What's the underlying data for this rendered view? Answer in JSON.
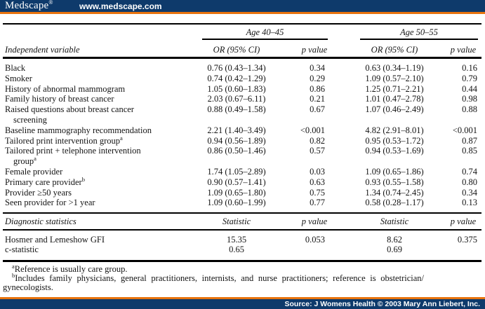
{
  "colors": {
    "navy": "#0e3a6b",
    "orange": "#e8730e",
    "rule": "#000000"
  },
  "masthead": {
    "logo_text": "Medscape",
    "logo_reg": "®",
    "url": "www.medscape.com"
  },
  "table": {
    "group_headers": {
      "g1": "Age 40–45",
      "g2": "Age 50–55"
    },
    "column_headers": {
      "variable": "Independent variable",
      "or1": "OR (95% CI)",
      "p1": "p value",
      "or2": "OR (95% CI)",
      "p2": "p value"
    },
    "rows": [
      {
        "label": "Black",
        "or1": "0.76 (0.43–1.34)",
        "p1": "0.34",
        "or2": "0.63 (0.34–1.19)",
        "p2": "0.16"
      },
      {
        "label": "Smoker",
        "or1": "0.74 (0.42–1.29)",
        "p1": "0.29",
        "or2": "1.09 (0.57–2.10)",
        "p2": "0.79"
      },
      {
        "label": "History of abnormal mammogram",
        "or1": "1.05 (0.60–1.83)",
        "p1": "0.86",
        "or2": "1.25 (0.71–2.21)",
        "p2": "0.44"
      },
      {
        "label": "Family history of breast cancer",
        "or1": "2.03 (0.67–6.11)",
        "p1": "0.21",
        "or2": "1.01 (0.47–2.78)",
        "p2": "0.98"
      },
      {
        "label": "Raised questions about breast cancer",
        "label2": "screening",
        "or1": "0.88 (0.49–1.58)",
        "p1": "0.67",
        "or2": "1.07 (0.46–2.49)",
        "p2": "0.88"
      },
      {
        "label": "Baseline mammography recommendation",
        "or1": "2.21 (1.40–3.49)",
        "p1": "<0.001",
        "or2": "4.82 (2.91–8.01)",
        "p2": "<0.001"
      },
      {
        "label": "Tailored print intervention group",
        "sup": "a",
        "or1": "0.94 (0.56–1.89)",
        "p1": "0.82",
        "or2": "0.95 (0.53–1.72)",
        "p2": "0.87"
      },
      {
        "label": "Tailored print + telephone intervention",
        "label2": "group",
        "label2_sup": "a",
        "or1": "0.86 (0.50–1.46)",
        "p1": "0.57",
        "or2": "0.94 (0.53–1.69)",
        "p2": "0.85"
      },
      {
        "label": "Female provider",
        "or1": "1.74 (1.05–2.89)",
        "p1": "0.03",
        "or2": "1.09 (0.65–1.86)",
        "p2": "0.74"
      },
      {
        "label": "Primary care provider",
        "sup": "b",
        "or1": "0.90 (0.57–1.41)",
        "p1": "0.63",
        "or2": "0.93 (0.55–1.58)",
        "p2": "0.80"
      },
      {
        "label": "Provider ≥50 years",
        "or1": "1.09 (0.65–1.80)",
        "p1": "0.75",
        "or2": "1.34 (0.74–2.45)",
        "p2": "0.34"
      },
      {
        "label": "Seen provider for >1 year",
        "or1": "1.09 (0.60–1.99)",
        "p1": "0.77",
        "or2": "0.58 (0.28–1.17)",
        "p2": "0.13"
      }
    ],
    "diagnostics": {
      "headers": {
        "label": "Diagnostic statistics",
        "stat1": "Statistic",
        "p1": "p value",
        "stat2": "Statistic",
        "p2": "p value"
      },
      "rows": [
        {
          "label": "Hosmer and Lemeshow GFI",
          "stat1": "15.35",
          "p1": "0.053",
          "stat2": "8.62",
          "p2": "0.375"
        },
        {
          "label": "c-statistic",
          "stat1": "0.65",
          "p1": "",
          "stat2": "0.69",
          "p2": ""
        }
      ]
    }
  },
  "footnotes": {
    "a_marker": "a",
    "a_text": "Reference is usually care group.",
    "b_marker": "b",
    "b_line1": "Includes family physicians, general practitioners, internists, and nurse practitioners; reference is obstetrician/",
    "b_line2": "gynecologists."
  },
  "footer": {
    "source": "Source: J Womens Health © 2003 Mary Ann Liebert, Inc."
  }
}
